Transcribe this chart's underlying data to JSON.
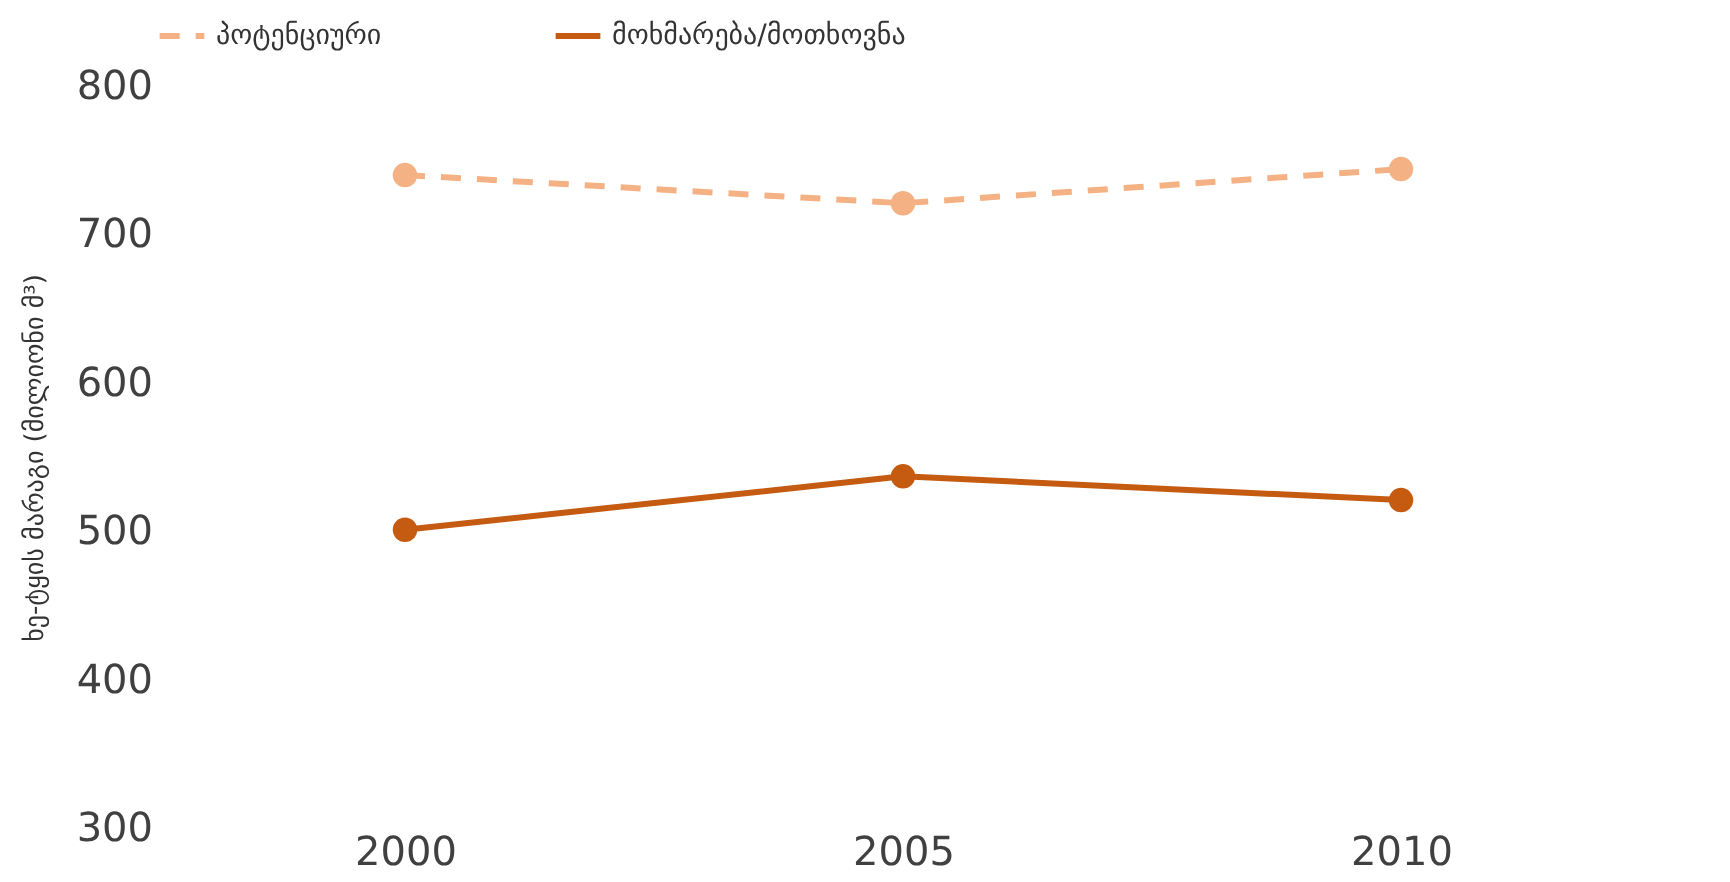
{
  "chart_data": {
    "type": "line",
    "ylabel": "ხე-ტყის მარაგი (მილიონი მ³)",
    "categories": [
      "2000",
      "2005",
      "2010"
    ],
    "series": [
      {
        "name": "პოტენციური",
        "color": "#f4b183",
        "values": [
          740,
          721,
          744
        ],
        "line_style": "dashed"
      },
      {
        "name": "მოხმარება/მოთხოვნა",
        "color": "#c55a11",
        "values": [
          501,
          537,
          521
        ],
        "line_style": "solid"
      }
    ],
    "ylim": [
      300,
      800
    ],
    "yticks": [
      300,
      400,
      500,
      600,
      700,
      800
    ],
    "grid": false,
    "legend": "top",
    "marker": "circle"
  }
}
